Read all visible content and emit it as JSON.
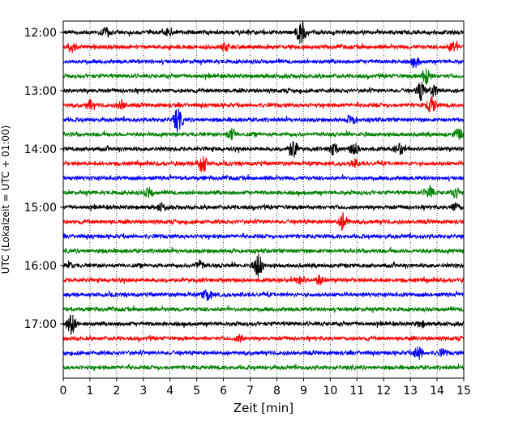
{
  "chart_data": {
    "type": "line",
    "title": "",
    "xlabel": "Zeit  [min]",
    "ylabel": "UTC (Lokalzeit = UTC + 01:00)",
    "xlim": [
      0,
      15
    ],
    "x_ticks": [
      "0",
      "1",
      "2",
      "3",
      "4",
      "5",
      "6",
      "7",
      "8",
      "9",
      "10",
      "11",
      "12",
      "13",
      "14",
      "15"
    ],
    "y_ticks": [
      "12:00",
      "13:00",
      "14:00",
      "15:00",
      "16:00",
      "17:00"
    ],
    "grid": "vertical dotted",
    "colors": [
      "#000000",
      "#ff0000",
      "#0000ff",
      "#008000"
    ],
    "start_time": "12:00",
    "trace_interval_min": 15,
    "trace_count": 24,
    "events": [
      {
        "trace": 0,
        "x": 8.9,
        "amp": 1.6
      },
      {
        "trace": 0,
        "x": 1.6,
        "amp": 0.7
      },
      {
        "trace": 0,
        "x": 4.0,
        "amp": 0.5
      },
      {
        "trace": 1,
        "x": 14.6,
        "amp": 0.8
      },
      {
        "trace": 1,
        "x": 0.3,
        "amp": 0.6
      },
      {
        "trace": 1,
        "x": 6.1,
        "amp": 0.5
      },
      {
        "trace": 2,
        "x": 13.2,
        "amp": 0.6
      },
      {
        "trace": 3,
        "x": 13.6,
        "amp": 1.2
      },
      {
        "trace": 4,
        "x": 13.4,
        "amp": 1.3
      },
      {
        "trace": 4,
        "x": 13.9,
        "amp": 0.8
      },
      {
        "trace": 5,
        "x": 1.0,
        "amp": 0.6
      },
      {
        "trace": 5,
        "x": 2.2,
        "amp": 0.5
      },
      {
        "trace": 5,
        "x": 13.8,
        "amp": 1.2
      },
      {
        "trace": 6,
        "x": 4.3,
        "amp": 1.6
      },
      {
        "trace": 6,
        "x": 10.8,
        "amp": 0.6
      },
      {
        "trace": 7,
        "x": 6.3,
        "amp": 0.8
      },
      {
        "trace": 7,
        "x": 14.8,
        "amp": 0.7
      },
      {
        "trace": 8,
        "x": 8.6,
        "amp": 1.3
      },
      {
        "trace": 8,
        "x": 10.1,
        "amp": 0.8
      },
      {
        "trace": 8,
        "x": 10.9,
        "amp": 0.8
      },
      {
        "trace": 8,
        "x": 12.6,
        "amp": 0.8
      },
      {
        "trace": 9,
        "x": 5.2,
        "amp": 1.5
      },
      {
        "trace": 9,
        "x": 10.9,
        "amp": 0.5
      },
      {
        "trace": 11,
        "x": 3.2,
        "amp": 0.6
      },
      {
        "trace": 11,
        "x": 13.7,
        "amp": 0.9
      },
      {
        "trace": 11,
        "x": 14.7,
        "amp": 0.6
      },
      {
        "trace": 12,
        "x": 3.7,
        "amp": 0.5
      },
      {
        "trace": 12,
        "x": 14.7,
        "amp": 0.6
      },
      {
        "trace": 13,
        "x": 10.5,
        "amp": 1.3
      },
      {
        "trace": 16,
        "x": 7.3,
        "amp": 1.6
      },
      {
        "trace": 16,
        "x": 5.1,
        "amp": 0.6
      },
      {
        "trace": 16,
        "x": 0.2,
        "amp": 0.4
      },
      {
        "trace": 17,
        "x": 8.9,
        "amp": 0.6
      },
      {
        "trace": 17,
        "x": 9.6,
        "amp": 0.6
      },
      {
        "trace": 18,
        "x": 5.4,
        "amp": 0.8
      },
      {
        "trace": 20,
        "x": 0.3,
        "amp": 1.6
      },
      {
        "trace": 20,
        "x": 13.4,
        "amp": 0.4
      },
      {
        "trace": 21,
        "x": 6.6,
        "amp": 0.4
      },
      {
        "trace": 22,
        "x": 13.3,
        "amp": 0.9
      },
      {
        "trace": 22,
        "x": 14.2,
        "amp": 0.4
      }
    ]
  }
}
